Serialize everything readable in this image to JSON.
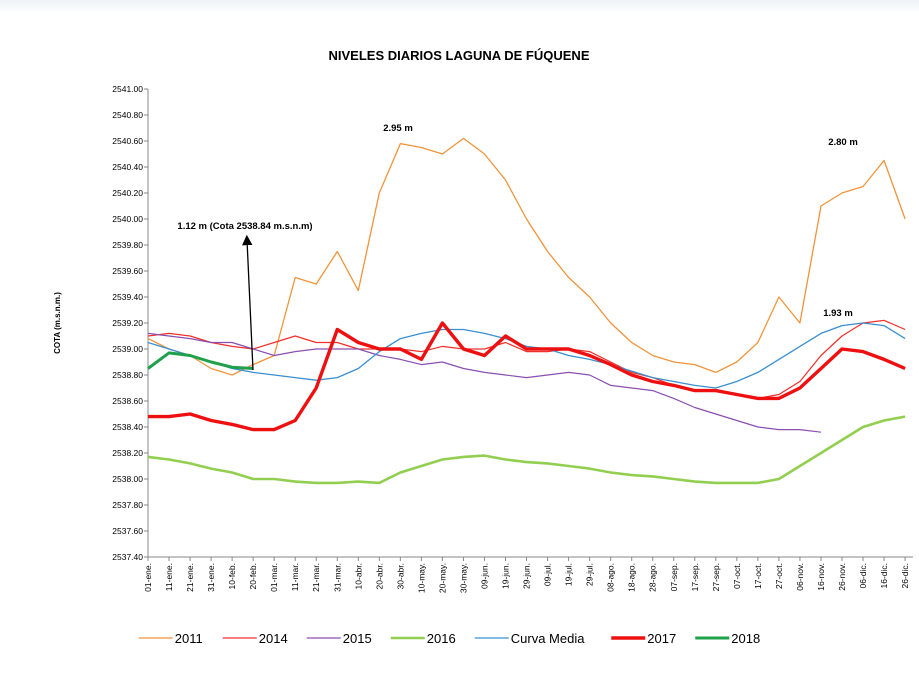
{
  "chart_data": {
    "type": "line",
    "title": "NIVELES DIARIOS LAGUNA DE FÚQUENE",
    "y_label": "COTA (m.s.n.m.)",
    "categories": [
      "01-ene.",
      "11-ene.",
      "21-ene.",
      "31-ene.",
      "10-feb.",
      "20-feb.",
      "01-mar.",
      "11-mar.",
      "21-mar.",
      "31-mar.",
      "10-abr.",
      "20-abr.",
      "30-abr.",
      "10-may.",
      "20-may.",
      "30-may.",
      "09-jun.",
      "19-jun.",
      "29-jun.",
      "09-jul.",
      "19-jul.",
      "29-jul.",
      "08-ago.",
      "18-ago.",
      "28-ago.",
      "07-sep.",
      "17-sep.",
      "27-sep.",
      "07-oct.",
      "17-oct.",
      "27-oct.",
      "06-nov.",
      "16-nov.",
      "26-nov.",
      "06-dic.",
      "16-dic.",
      "26-dic."
    ],
    "ylim": [
      2537.4,
      2541.0
    ],
    "yticks": [
      {
        "value": 2537.4,
        "label": "2537.40"
      },
      {
        "value": 2537.6,
        "label": "2537.60"
      },
      {
        "value": 2537.8,
        "label": "2537.80"
      },
      {
        "value": 2538.0,
        "label": "2538.00"
      },
      {
        "value": 2538.2,
        "label": "2538.20"
      },
      {
        "value": 2538.4,
        "label": "2538.40"
      },
      {
        "value": 2538.6,
        "label": "2538.60"
      },
      {
        "value": 2538.8,
        "label": "2538.80"
      },
      {
        "value": 2539.0,
        "label": "2539.00"
      },
      {
        "value": 2539.2,
        "label": "2539.20"
      },
      {
        "value": 2539.4,
        "label": "2539.40"
      },
      {
        "value": 2539.6,
        "label": "2539.60"
      },
      {
        "value": 2539.8,
        "label": "2539.80"
      },
      {
        "value": 2540.0,
        "label": "2540.00"
      },
      {
        "value": 2540.2,
        "label": "2540.20"
      },
      {
        "value": 2540.4,
        "label": "2540.40"
      },
      {
        "value": 2540.6,
        "label": "2540.60"
      },
      {
        "value": 2540.8,
        "label": "2540.80"
      },
      {
        "value": 2541.0,
        "label": "2541.00"
      }
    ],
    "grid": false,
    "series": [
      {
        "name": "2011",
        "color": "#f0943a",
        "width": 1.3,
        "values": [
          2539.08,
          2539.0,
          2538.95,
          2538.85,
          2538.8,
          2538.88,
          2538.95,
          2539.55,
          2539.5,
          2539.75,
          2539.45,
          2540.2,
          2540.58,
          2540.55,
          2540.5,
          2540.62,
          2540.5,
          2540.3,
          2540.0,
          2539.75,
          2539.55,
          2539.4,
          2539.2,
          2539.05,
          2538.95,
          2538.9,
          2538.88,
          2538.82,
          2538.9,
          2539.05,
          2539.4,
          2539.2,
          2540.1,
          2540.2,
          2540.25,
          2540.45,
          2540.0
        ]
      },
      {
        "name": "2014",
        "color": "#f0302a",
        "width": 1.2,
        "values": [
          2539.1,
          2539.12,
          2539.1,
          2539.05,
          2539.02,
          2539.0,
          2539.05,
          2539.1,
          2539.05,
          2539.05,
          2539.0,
          2539.0,
          2539.0,
          2538.98,
          2539.02,
          2539.0,
          2539.0,
          2539.05,
          2538.98,
          2538.98,
          2539.0,
          2538.98,
          2538.9,
          2538.82,
          2538.78,
          2538.72,
          2538.68,
          2538.68,
          2538.65,
          2538.62,
          2538.65,
          2538.75,
          2538.95,
          2539.1,
          2539.2,
          2539.22,
          2539.15
        ]
      },
      {
        "name": "2015",
        "color": "#8a4fb0",
        "width": 1.2,
        "values": [
          2539.12,
          2539.1,
          2539.08,
          2539.05,
          2539.05,
          2539.0,
          2538.95,
          2538.98,
          2539.0,
          2539.0,
          2539.0,
          2538.95,
          2538.92,
          2538.88,
          2538.9,
          2538.85,
          2538.82,
          2538.8,
          2538.78,
          2538.8,
          2538.82,
          2538.8,
          2538.72,
          2538.7,
          2538.68,
          2538.62,
          2538.55,
          2538.5,
          2538.45,
          2538.4,
          2538.38,
          2538.38,
          2538.36,
          null,
          null,
          null,
          null
        ]
      },
      {
        "name": "2016",
        "color": "#92cf50",
        "width": 2.6,
        "values": [
          2538.17,
          2538.15,
          2538.12,
          2538.08,
          2538.05,
          2538.0,
          2538.0,
          2537.98,
          2537.97,
          2537.97,
          2537.98,
          2537.97,
          2538.05,
          2538.1,
          2538.15,
          2538.17,
          2538.18,
          2538.15,
          2538.13,
          2538.12,
          2538.1,
          2538.08,
          2538.05,
          2538.03,
          2538.02,
          2538.0,
          2537.98,
          2537.97,
          2537.97,
          2537.97,
          2538.0,
          2538.1,
          2538.2,
          2538.3,
          2538.4,
          2538.45,
          2538.48
        ]
      },
      {
        "name": "Curva Media",
        "color": "#3a8fd0",
        "width": 1.3,
        "values": [
          2539.05,
          2539.0,
          2538.95,
          2538.9,
          2538.85,
          2538.82,
          2538.8,
          2538.78,
          2538.76,
          2538.78,
          2538.85,
          2538.98,
          2539.08,
          2539.12,
          2539.15,
          2539.15,
          2539.12,
          2539.08,
          2539.02,
          2539.0,
          2538.95,
          2538.92,
          2538.88,
          2538.83,
          2538.78,
          2538.75,
          2538.72,
          2538.7,
          2538.75,
          2538.82,
          2538.92,
          2539.02,
          2539.12,
          2539.18,
          2539.2,
          2539.18,
          2539.08
        ]
      },
      {
        "name": "2017",
        "color": "#ee1010",
        "width": 3.4,
        "values": [
          2538.48,
          2538.48,
          2538.5,
          2538.45,
          2538.42,
          2538.38,
          2538.38,
          2538.45,
          2538.7,
          2539.15,
          2539.05,
          2539.0,
          2539.0,
          2538.92,
          2539.2,
          2539.0,
          2538.95,
          2539.1,
          2539.0,
          2539.0,
          2539.0,
          2538.95,
          2538.88,
          2538.8,
          2538.75,
          2538.72,
          2538.68,
          2538.68,
          2538.65,
          2538.62,
          2538.62,
          2538.7,
          2538.85,
          2539.0,
          2538.98,
          2538.92,
          2538.85
        ]
      },
      {
        "name": "2018",
        "color": "#1fa04a",
        "width": 3.0,
        "values": [
          2538.85,
          2538.97,
          2538.95,
          2538.9,
          2538.86,
          2538.85,
          null,
          null,
          null,
          null,
          null,
          null,
          null,
          null,
          null,
          null,
          null,
          null,
          null,
          null,
          null,
          null,
          null,
          null,
          null,
          null,
          null,
          null,
          null,
          null,
          null,
          null,
          null,
          null,
          null,
          null,
          null
        ]
      }
    ],
    "annotations": [
      "2.95 m",
      "2.80 m",
      "1.93 m",
      "1.12 m (Cota 2538.84 m.s.n.m)"
    ]
  }
}
